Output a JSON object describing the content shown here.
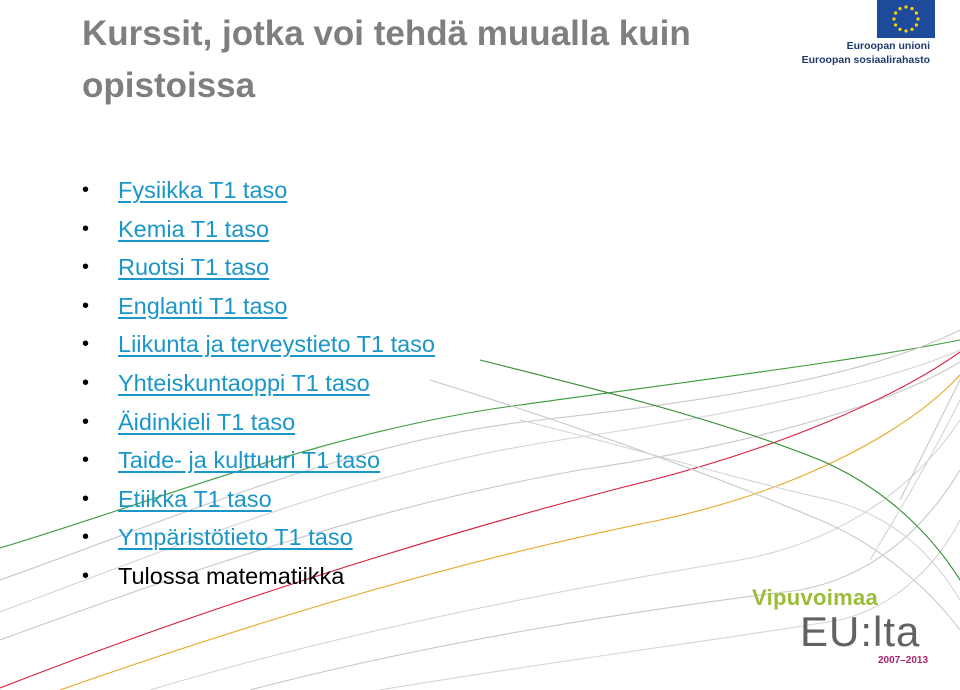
{
  "slide": {
    "title": "Kurssit, jotka voi tehdä muualla kuin opistoissa"
  },
  "courses": [
    {
      "label": "Fysiikka T1 taso",
      "link": true
    },
    {
      "label": "Kemia T1 taso",
      "link": true
    },
    {
      "label": "Ruotsi T1 taso",
      "link": true
    },
    {
      "label": "Englanti T1 taso",
      "link": true
    },
    {
      "label": "Liikunta ja terveystieto T1 taso",
      "link": true
    },
    {
      "label": "Yhteiskuntaoppi T1 taso",
      "link": true
    },
    {
      "label": "Äidinkieli T1 taso",
      "link": true
    },
    {
      "label": "Taide- ja kulttuuri T1 taso",
      "link": true
    },
    {
      "label": "Etiikka T1 taso",
      "link": true
    },
    {
      "label": "Ympäristötieto T1 taso",
      "link": true
    },
    {
      "label": "Tulossa matematiikka",
      "link": false
    }
  ],
  "eu_logo": {
    "line1": "Euroopan unioni",
    "line2": "Euroopan sosiaalirahasto",
    "flag_color": "#1e4a9c",
    "star_color": "#ffd400"
  },
  "programme_logo": {
    "top": "Vipuvoimaa",
    "main": "EU:lta",
    "years": "2007–2013"
  },
  "colors": {
    "title": "#7f7f7f",
    "link": "#1a96c8",
    "text": "#000000"
  }
}
